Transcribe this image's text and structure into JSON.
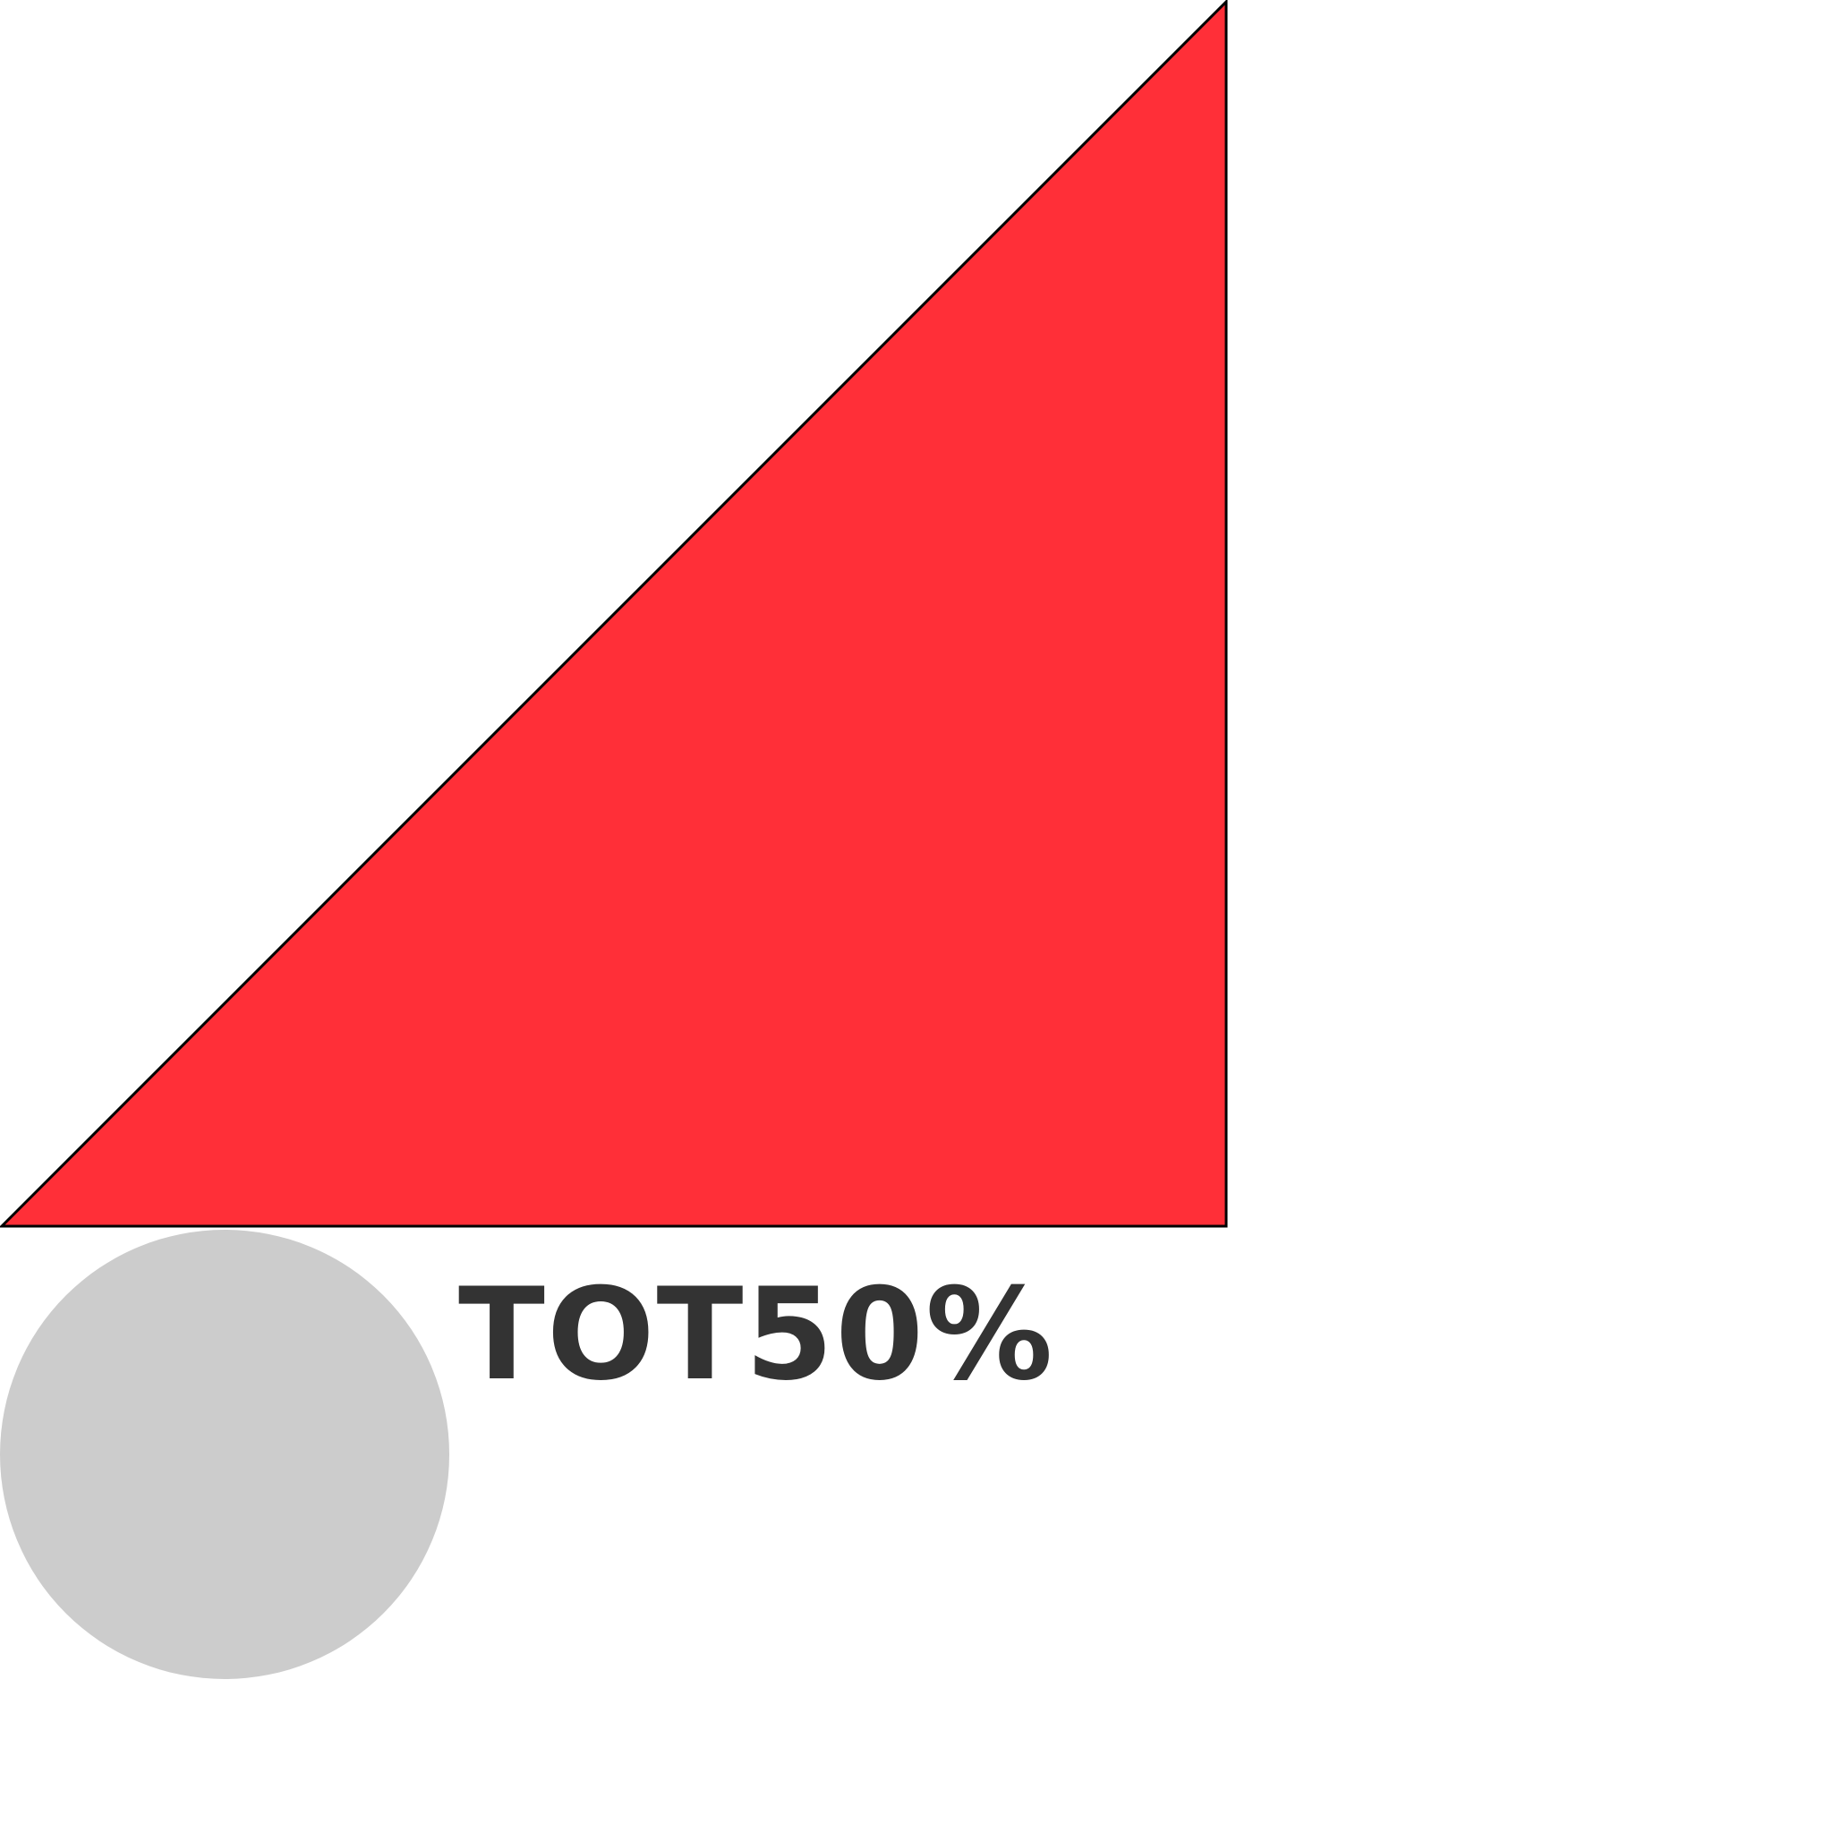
{
  "label": {
    "text": "TOT50%"
  },
  "colors": {
    "triangle_fill": "#ff2f38",
    "triangle_stroke": "#000000",
    "circle_fill": "#cccccc",
    "text": "#333333",
    "background": "#ffffff"
  }
}
